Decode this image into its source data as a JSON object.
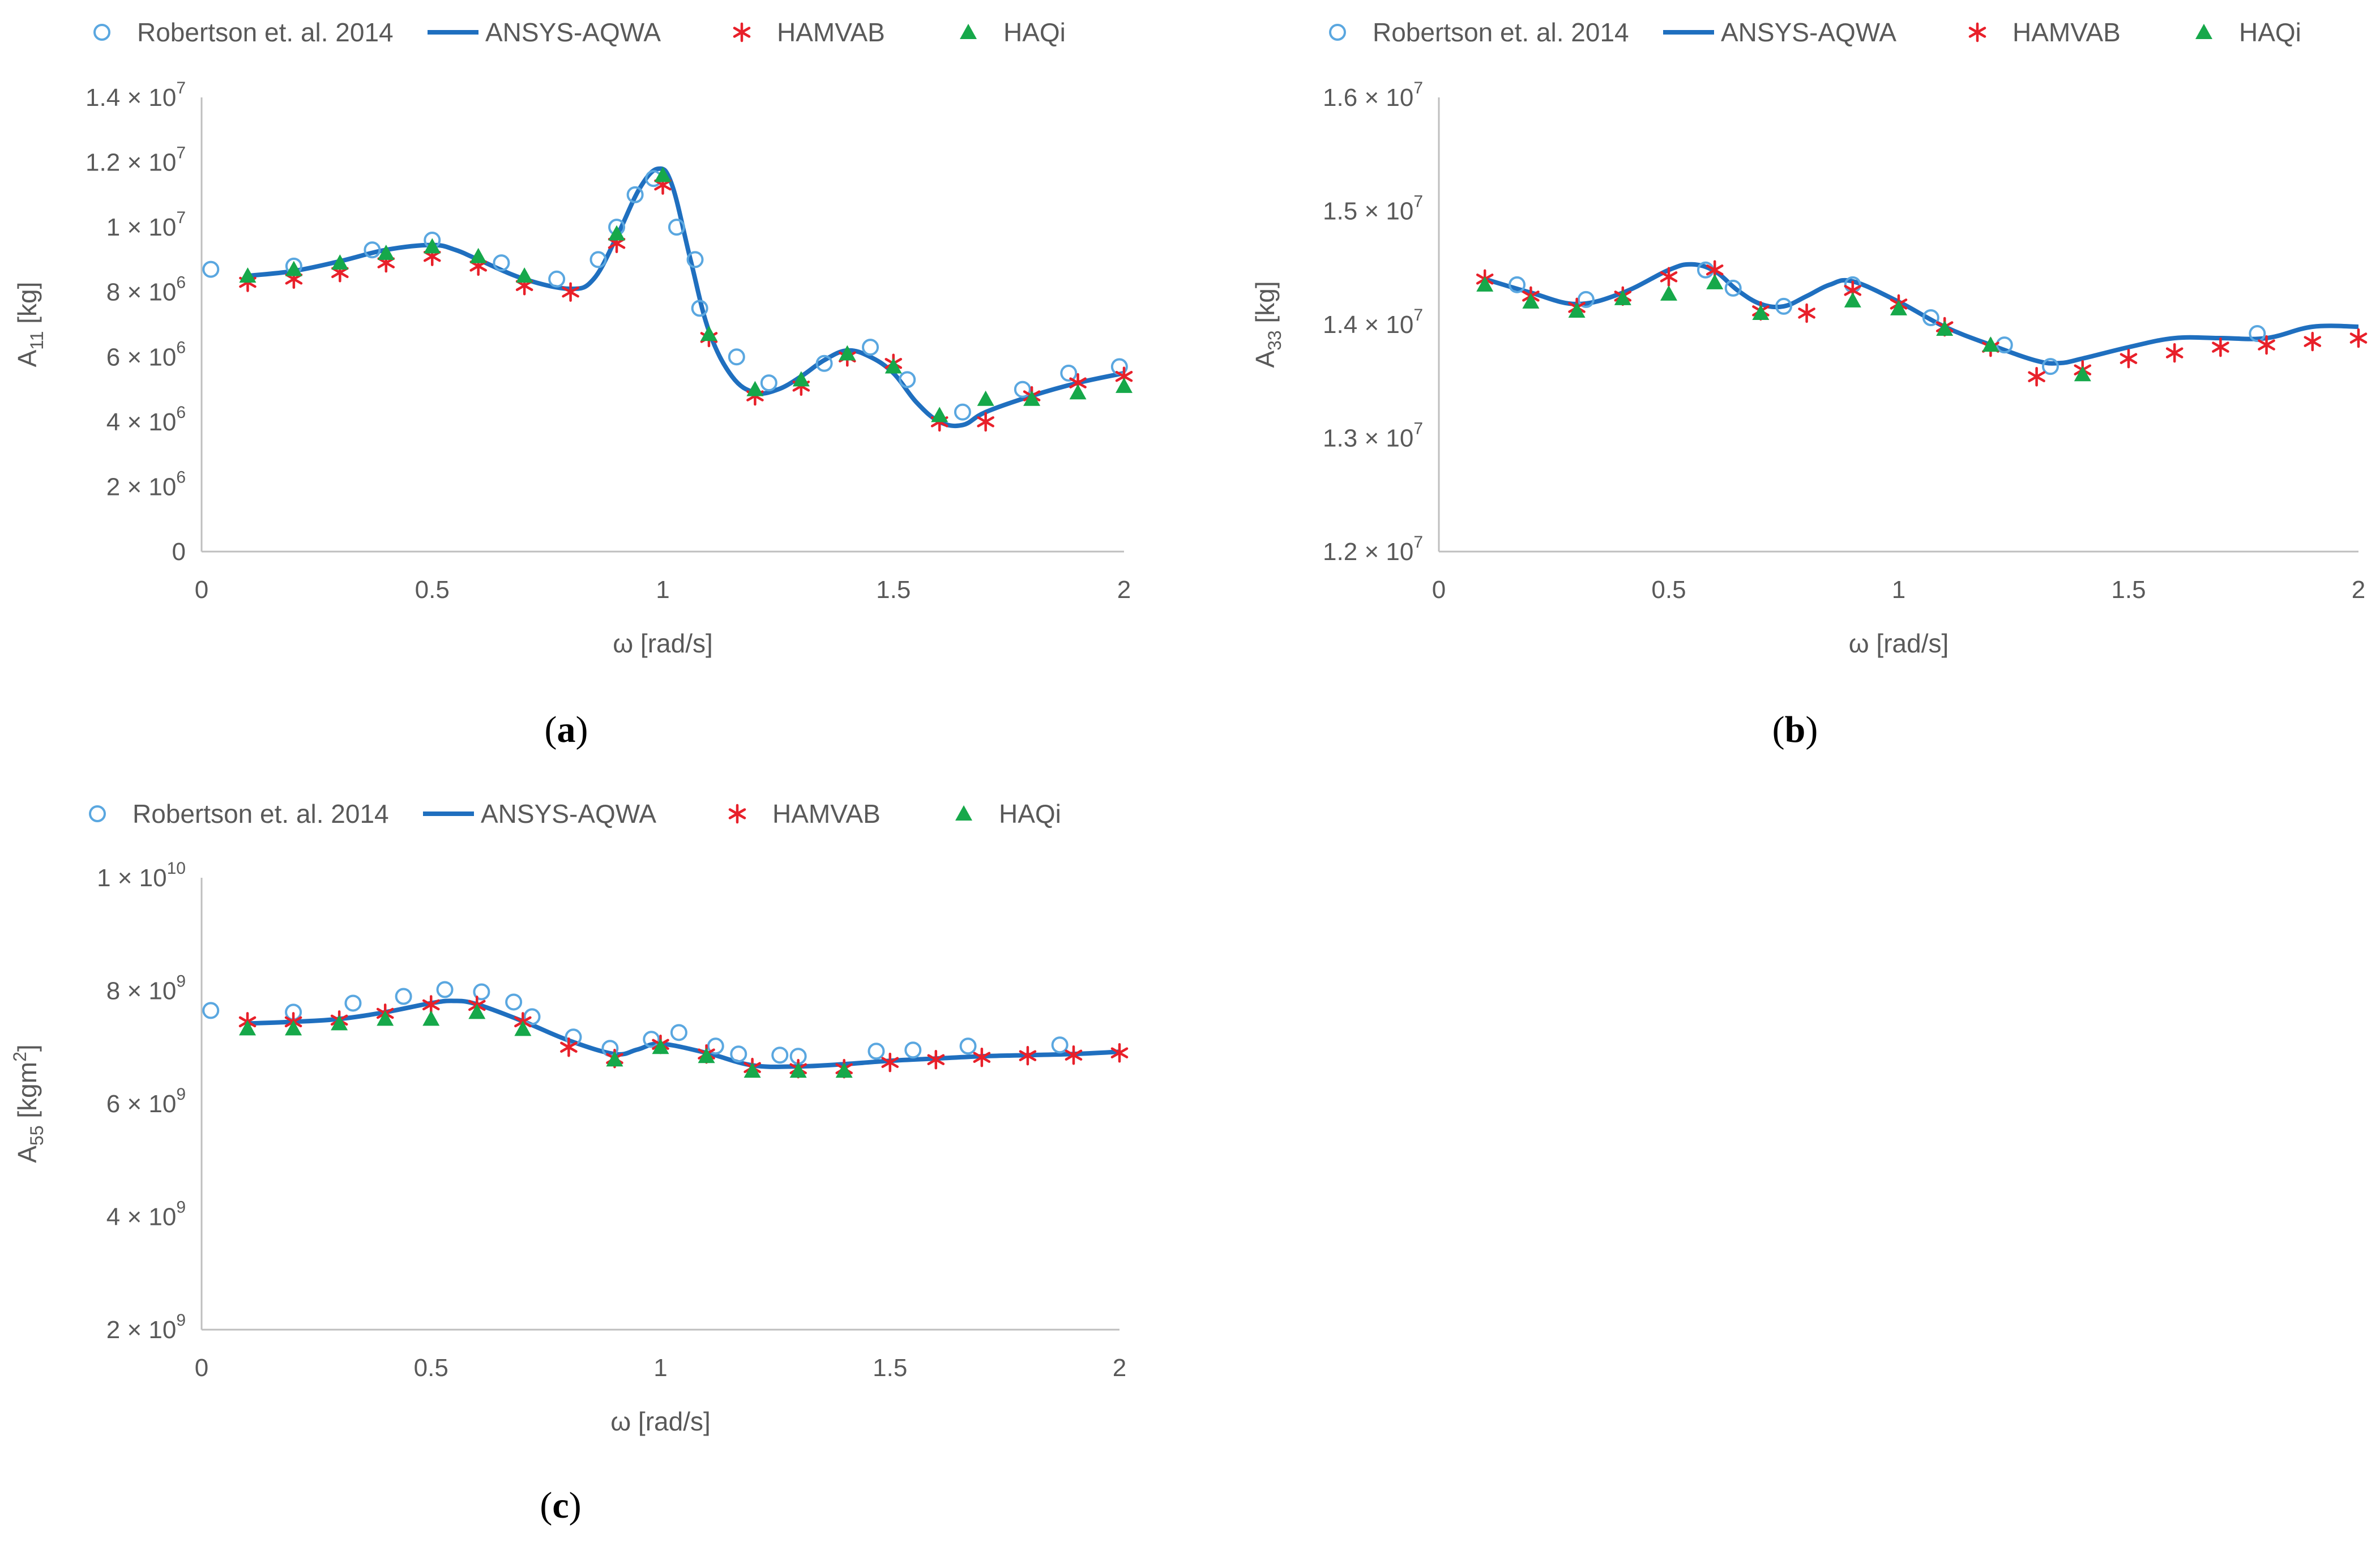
{
  "colors": {
    "robertson": "#5aa7e0",
    "ansys": "#1f6fbf",
    "hamvab": "#e8202a",
    "haqi": "#16a84a",
    "axis": "#bfbfbf",
    "text": "#595959"
  },
  "legend": {
    "robertson": "Robertson et. al. 2014",
    "ansys": "ANSYS-AQWA",
    "hamvab": "HAMVAB",
    "haqi": "HAQi"
  },
  "chart_data": [
    {
      "id": "a",
      "type": "scatter",
      "panel_label": "a",
      "xlabel": "ω [rad/s]",
      "ylabel": {
        "base": "A",
        "sub": "11",
        "unit": " [kg]"
      },
      "xlim": [
        0,
        2
      ],
      "ylim": [
        0,
        14000000
      ],
      "xticks": [
        {
          "v": 0,
          "t": "0"
        },
        {
          "v": 0.5,
          "t": "0.5"
        },
        {
          "v": 1,
          "t": "1"
        },
        {
          "v": 1.5,
          "t": "1.5"
        },
        {
          "v": 2,
          "t": "2"
        }
      ],
      "yticks": [
        {
          "v": 0,
          "base": "0",
          "exp": ""
        },
        {
          "v": 2000000,
          "base": "2 × 10",
          "exp": "6"
        },
        {
          "v": 4000000,
          "base": "4 × 10",
          "exp": "6"
        },
        {
          "v": 6000000,
          "base": "6 × 10",
          "exp": "6"
        },
        {
          "v": 8000000,
          "base": "8 × 10",
          "exp": "6"
        },
        {
          "v": 10000000,
          "base": "1 × 10",
          "exp": "7"
        },
        {
          "v": 12000000,
          "base": "1.2 × 10",
          "exp": "7"
        },
        {
          "v": 14000000,
          "base": "1.4 × 10",
          "exp": "7"
        }
      ],
      "series": [
        {
          "name": "Robertson et. al. 2014",
          "key": "robertson",
          "marker": "circle",
          "x": [
            0.02,
            0.2,
            0.37,
            0.5,
            0.65,
            0.77,
            0.86,
            0.9,
            0.94,
            0.98,
            1.03,
            1.07,
            1.08,
            1.16,
            1.23,
            1.35,
            1.45,
            1.53,
            1.65,
            1.78,
            1.88,
            1.99
          ],
          "y": [
            8700000,
            8800000,
            9300000,
            9600000,
            8900000,
            8400000,
            9000000,
            10000000,
            11000000,
            11500000,
            10000000,
            9000000,
            7500000,
            6000000,
            5200000,
            5800000,
            6300000,
            5300000,
            4300000,
            5000000,
            5500000,
            5700000
          ]
        },
        {
          "name": "ANSYS-AQWA",
          "key": "ansys",
          "marker": "line",
          "x": [
            0.1,
            0.2,
            0.3,
            0.4,
            0.5,
            0.55,
            0.6,
            0.7,
            0.8,
            0.85,
            0.9,
            0.95,
            0.99,
            1.02,
            1.06,
            1.1,
            1.15,
            1.2,
            1.25,
            1.3,
            1.35,
            1.4,
            1.45,
            1.5,
            1.55,
            1.6,
            1.65,
            1.7,
            1.8,
            1.9,
            2.0
          ],
          "y": [
            8500000,
            8650000,
            8950000,
            9300000,
            9450000,
            9300000,
            9000000,
            8400000,
            8100000,
            8400000,
            9700000,
            11200000,
            11800000,
            11300000,
            9000000,
            6800000,
            5400000,
            4900000,
            5000000,
            5400000,
            5900000,
            6200000,
            6000000,
            5500000,
            4600000,
            4000000,
            3900000,
            4300000,
            4800000,
            5200000,
            5500000
          ]
        },
        {
          "name": "HAMVAB",
          "key": "hamvab",
          "marker": "star",
          "x": [
            0.1,
            0.2,
            0.3,
            0.4,
            0.5,
            0.6,
            0.7,
            0.8,
            0.9,
            1.0,
            1.1,
            1.2,
            1.3,
            1.4,
            1.5,
            1.6,
            1.7,
            1.8,
            1.9,
            2.0
          ],
          "y": [
            8300000,
            8400000,
            8600000,
            8900000,
            9100000,
            8800000,
            8200000,
            8000000,
            9500000,
            11300000,
            6600000,
            4800000,
            5100000,
            6000000,
            5800000,
            4000000,
            4000000,
            4800000,
            5200000,
            5400000
          ]
        },
        {
          "name": "HAQi",
          "key": "haqi",
          "marker": "triangle",
          "x": [
            0.1,
            0.2,
            0.3,
            0.4,
            0.5,
            0.6,
            0.7,
            0.9,
            1.0,
            1.1,
            1.2,
            1.3,
            1.4,
            1.5,
            1.6,
            1.7,
            1.8,
            1.9,
            2.0
          ],
          "y": [
            8500000,
            8700000,
            8900000,
            9200000,
            9400000,
            9100000,
            8500000,
            9800000,
            11600000,
            6700000,
            5000000,
            5300000,
            6100000,
            5700000,
            4200000,
            4700000,
            4700000,
            4900000,
            5100000
          ]
        }
      ]
    },
    {
      "id": "b",
      "type": "scatter",
      "panel_label": "b",
      "xlabel": "ω [rad/s]",
      "ylabel": {
        "base": "A",
        "sub": "33",
        "unit": " [kg]"
      },
      "xlim": [
        0,
        2
      ],
      "ylim": [
        12000000,
        16000000
      ],
      "xticks": [
        {
          "v": 0,
          "t": "0"
        },
        {
          "v": 0.5,
          "t": "0.5"
        },
        {
          "v": 1,
          "t": "1"
        },
        {
          "v": 1.5,
          "t": "1.5"
        },
        {
          "v": 2,
          "t": "2"
        }
      ],
      "yticks": [
        {
          "v": 12000000,
          "base": "1.2 × 10",
          "exp": "7"
        },
        {
          "v": 13000000,
          "base": "1.3 × 10",
          "exp": "7"
        },
        {
          "v": 14000000,
          "base": "1.4 × 10",
          "exp": "7"
        },
        {
          "v": 15000000,
          "base": "1.5 × 10",
          "exp": "7"
        },
        {
          "v": 16000000,
          "base": "1.6 × 10",
          "exp": "7"
        }
      ],
      "series": [
        {
          "name": "Robertson et. al. 2014",
          "key": "robertson",
          "marker": "circle",
          "x": [
            0.17,
            0.32,
            0.58,
            0.64,
            0.75,
            0.9,
            1.07,
            1.23,
            1.33,
            1.78
          ],
          "y": [
            14350000,
            14220000,
            14480000,
            14320000,
            14160000,
            14350000,
            14060000,
            13820000,
            13630000,
            13920000
          ]
        },
        {
          "name": "ANSYS-AQWA",
          "key": "ansys",
          "marker": "line",
          "x": [
            0.1,
            0.2,
            0.3,
            0.4,
            0.5,
            0.55,
            0.6,
            0.65,
            0.7,
            0.75,
            0.8,
            0.85,
            0.9,
            1.0,
            1.1,
            1.2,
            1.3,
            1.35,
            1.4,
            1.5,
            1.6,
            1.7,
            1.8,
            1.9,
            2.0
          ],
          "y": [
            14400000,
            14280000,
            14180000,
            14280000,
            14480000,
            14530000,
            14470000,
            14300000,
            14180000,
            14160000,
            14250000,
            14350000,
            14380000,
            14200000,
            13980000,
            13820000,
            13680000,
            13660000,
            13700000,
            13800000,
            13880000,
            13880000,
            13880000,
            13980000,
            13980000
          ]
        },
        {
          "name": "HAMVAB",
          "key": "hamvab",
          "marker": "star",
          "x": [
            0.1,
            0.2,
            0.3,
            0.4,
            0.5,
            0.6,
            0.7,
            0.8,
            0.9,
            1.0,
            1.1,
            1.2,
            1.3,
            1.4,
            1.5,
            1.6,
            1.7,
            1.8,
            1.9,
            2.0
          ],
          "y": [
            14400000,
            14250000,
            14150000,
            14250000,
            14420000,
            14480000,
            14120000,
            14100000,
            14300000,
            14180000,
            13980000,
            13800000,
            13540000,
            13600000,
            13700000,
            13750000,
            13800000,
            13820000,
            13850000,
            13880000
          ]
        },
        {
          "name": "HAQi",
          "key": "haqi",
          "marker": "triangle",
          "x": [
            0.1,
            0.2,
            0.3,
            0.4,
            0.5,
            0.6,
            0.7,
            0.9,
            1.0,
            1.1,
            1.2,
            1.4
          ],
          "y": [
            14350000,
            14200000,
            14120000,
            14230000,
            14270000,
            14370000,
            14100000,
            14210000,
            14140000,
            13960000,
            13820000,
            13560000
          ]
        }
      ]
    },
    {
      "id": "c",
      "type": "scatter",
      "panel_label": "c",
      "xlabel": "ω [rad/s]",
      "ylabel": {
        "base": "A",
        "sub": "55",
        "unit": " [kgm",
        "unit_sup": "2",
        "unit_end": "]"
      },
      "xlim": [
        0,
        2
      ],
      "ylim": [
        2000000000,
        10000000000
      ],
      "xticks": [
        {
          "v": 0,
          "t": "0"
        },
        {
          "v": 0.5,
          "t": "0.5"
        },
        {
          "v": 1,
          "t": "1"
        },
        {
          "v": 1.5,
          "t": "1.5"
        },
        {
          "v": 2,
          "t": "2"
        }
      ],
      "yticks": [
        {
          "v": 2000000000,
          "base": "2 × 10",
          "exp": "9"
        },
        {
          "v": 4000000000,
          "base": "4 × 10",
          "exp": "9"
        },
        {
          "v": 6000000000,
          "base": "6 × 10",
          "exp": "9"
        },
        {
          "v": 8000000000,
          "base": "8 × 10",
          "exp": "9"
        },
        {
          "v": 10000000000,
          "base": "1 × 10",
          "exp": "10"
        }
      ],
      "series": [
        {
          "name": "Robertson et. al. 2014",
          "key": "robertson",
          "marker": "circle",
          "x": [
            0.02,
            0.2,
            0.33,
            0.44,
            0.53,
            0.61,
            0.68,
            0.72,
            0.81,
            0.89,
            0.98,
            1.04,
            1.12,
            1.17,
            1.26,
            1.3,
            1.47,
            1.55,
            1.67,
            1.87
          ],
          "y": [
            7650000000,
            7620000000,
            7780000000,
            7900000000,
            8020000000,
            7980000000,
            7800000000,
            7540000000,
            7180000000,
            6980000000,
            7140000000,
            7260000000,
            7020000000,
            6880000000,
            6860000000,
            6840000000,
            6930000000,
            6950000000,
            7020000000,
            7040000000
          ]
        },
        {
          "name": "ANSYS-AQWA",
          "key": "ansys",
          "marker": "line",
          "x": [
            0.1,
            0.2,
            0.3,
            0.4,
            0.5,
            0.55,
            0.6,
            0.7,
            0.8,
            0.9,
            0.95,
            1.0,
            1.1,
            1.2,
            1.3,
            1.4,
            1.5,
            1.6,
            1.7,
            1.8,
            1.9,
            2.0
          ],
          "y": [
            7420000000,
            7450000000,
            7500000000,
            7620000000,
            7780000000,
            7820000000,
            7760000000,
            7460000000,
            7120000000,
            6880000000,
            6960000000,
            7060000000,
            6900000000,
            6680000000,
            6660000000,
            6700000000,
            6760000000,
            6800000000,
            6840000000,
            6860000000,
            6880000000,
            6920000000
          ]
        },
        {
          "name": "HAMVAB",
          "key": "hamvab",
          "marker": "star",
          "x": [
            0.1,
            0.2,
            0.3,
            0.4,
            0.5,
            0.6,
            0.7,
            0.8,
            0.9,
            1.0,
            1.1,
            1.2,
            1.3,
            1.4,
            1.5,
            1.6,
            1.7,
            1.8,
            1.9,
            2.0
          ],
          "y": [
            7450000000,
            7450000000,
            7480000000,
            7600000000,
            7750000000,
            7740000000,
            7450000000,
            7000000000,
            6800000000,
            7050000000,
            6880000000,
            6640000000,
            6620000000,
            6620000000,
            6730000000,
            6780000000,
            6820000000,
            6850000000,
            6860000000,
            6900000000
          ]
        },
        {
          "name": "HAQi",
          "key": "haqi",
          "marker": "triangle",
          "x": [
            0.1,
            0.2,
            0.3,
            0.4,
            0.5,
            0.6,
            0.7,
            0.9,
            1.0,
            1.1,
            1.2,
            1.3,
            1.4
          ],
          "y": [
            7330000000,
            7330000000,
            7420000000,
            7500000000,
            7500000000,
            7620000000,
            7320000000,
            6780000000,
            7000000000,
            6840000000,
            6580000000,
            6580000000,
            6580000000
          ]
        }
      ]
    }
  ]
}
